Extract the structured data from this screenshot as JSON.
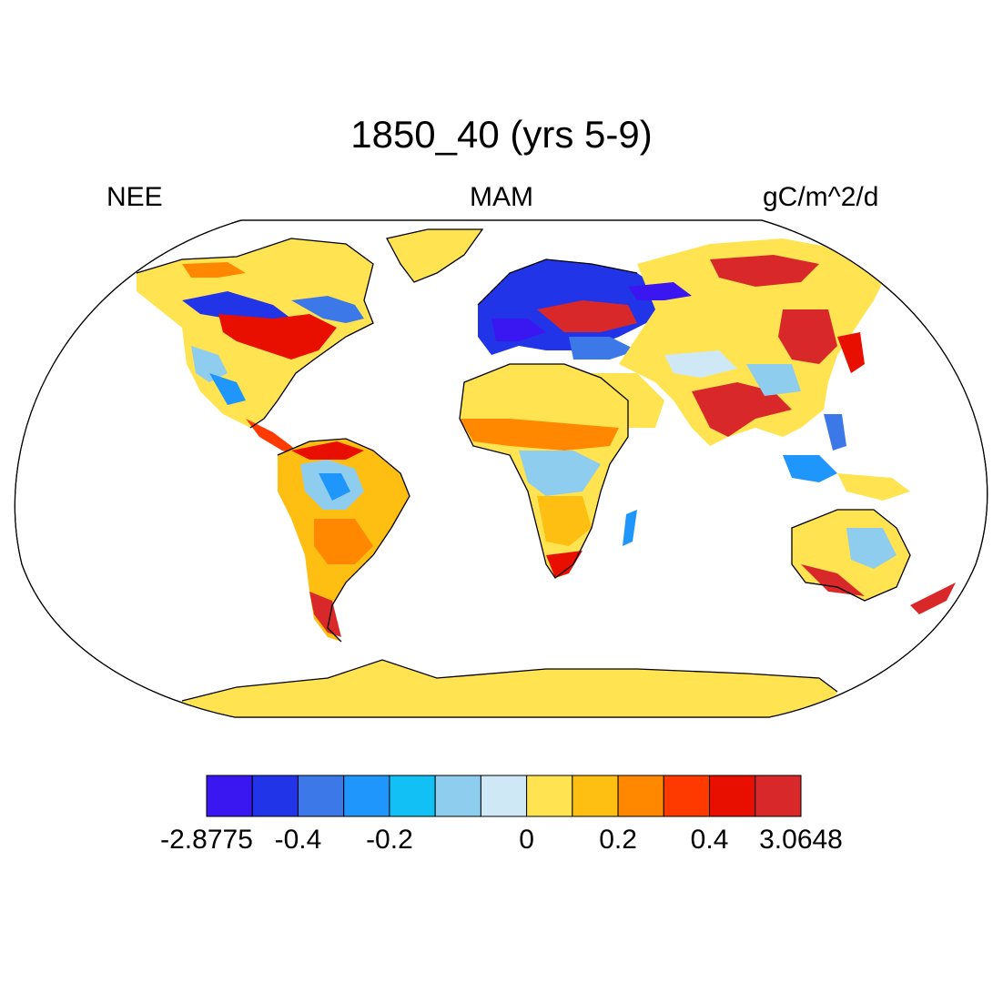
{
  "title": "1850_40 (yrs 5-9)",
  "left_label": "NEE",
  "center_label": "MAM",
  "right_label": "gC/m^2/d",
  "colorbar": {
    "colors": [
      "#3a16f0",
      "#2234e8",
      "#3d78e8",
      "#1f96fb",
      "#12c0f6",
      "#8fcdee",
      "#cfe8f6",
      "#ffe350",
      "#ffbe12",
      "#ff8800",
      "#ff3a00",
      "#e80f00",
      "#d8282a"
    ],
    "tick_labels": [
      "-2.8775",
      "-0.4",
      "-0.2",
      "0",
      "0.2",
      "0.4",
      "3.0648"
    ]
  },
  "map": {
    "projection": "Robinson",
    "ocean_color": "#ffffff",
    "coastline_color": "#000000"
  }
}
